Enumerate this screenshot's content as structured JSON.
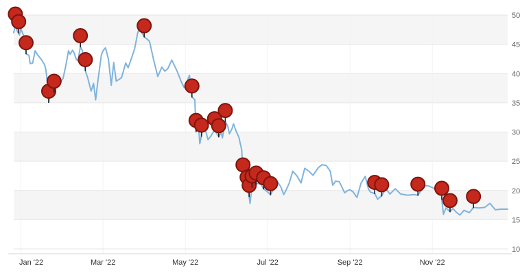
{
  "chart_data": {
    "type": "line",
    "title": "",
    "description": "Price line chart for year 2022 (values in thousands) with red event pin markers",
    "x_axis": {
      "unit": "months since Jan 1 2022",
      "range": [
        -0.17,
        11.83
      ],
      "ticks": [
        {
          "pos": 0,
          "label": "Jan '22"
        },
        {
          "pos": 2,
          "label": "Mar '22"
        },
        {
          "pos": 4,
          "label": "May '22"
        },
        {
          "pos": 6,
          "label": "Jul '22"
        },
        {
          "pos": 8,
          "label": "Sep '22"
        },
        {
          "pos": 10,
          "label": "Nov '22"
        }
      ]
    },
    "y_axis": {
      "unit": "thousands",
      "range": [
        10,
        50
      ],
      "ticks": [
        {
          "value": 10,
          "label": "10k"
        },
        {
          "value": 15,
          "label": "15k"
        },
        {
          "value": 20,
          "label": "20k"
        },
        {
          "value": 25,
          "label": "25k"
        },
        {
          "value": 30,
          "label": "30k"
        },
        {
          "value": 35,
          "label": "35k"
        },
        {
          "value": 40,
          "label": "40k"
        },
        {
          "value": 45,
          "label": "45k"
        },
        {
          "value": 50,
          "label": "50k"
        }
      ]
    },
    "grid": {
      "bands_on": true,
      "band_color": "#f5f5f5",
      "line_color": "#e6e6e6",
      "vline_color": "#f2f2f2",
      "axis_line_color": "#d4d4d4",
      "x_label_color": "#333333",
      "y_label_color": "#666666"
    },
    "series": [
      {
        "name": "price",
        "color": "#7fb3de",
        "points": [
          [
            -0.17,
            47.0
          ],
          [
            -0.13,
            48.3
          ],
          [
            -0.08,
            47.2
          ],
          [
            -0.03,
            46.6
          ],
          [
            0,
            47.7
          ],
          [
            0.07,
            46.5
          ],
          [
            0.13,
            43.4
          ],
          [
            0.2,
            43.1
          ],
          [
            0.23,
            41.7
          ],
          [
            0.29,
            41.8
          ],
          [
            0.35,
            43.9
          ],
          [
            0.42,
            43.1
          ],
          [
            0.48,
            42.6
          ],
          [
            0.52,
            42.2
          ],
          [
            0.58,
            41.5
          ],
          [
            0.61,
            40.7
          ],
          [
            0.65,
            38.4
          ],
          [
            0.68,
            35.1
          ],
          [
            0.71,
            36.4
          ],
          [
            0.74,
            36.1
          ],
          [
            0.81,
            36.8
          ],
          [
            0.87,
            37.8
          ],
          [
            0.94,
            38.1
          ],
          [
            0.97,
            38.5
          ],
          [
            1.03,
            39.2
          ],
          [
            1.1,
            41.5
          ],
          [
            1.16,
            43.9
          ],
          [
            1.2,
            43.3
          ],
          [
            1.26,
            44.0
          ],
          [
            1.3,
            43.5
          ],
          [
            1.35,
            42.4
          ],
          [
            1.39,
            42.2
          ],
          [
            1.45,
            44.6
          ],
          [
            1.5,
            43.9
          ],
          [
            1.53,
            42.7
          ],
          [
            1.57,
            40.5
          ],
          [
            1.63,
            39.2
          ],
          [
            1.71,
            37.0
          ],
          [
            1.77,
            38.3
          ],
          [
            1.82,
            35.5
          ],
          [
            1.88,
            39.0
          ],
          [
            1.96,
            43.2
          ],
          [
            2.0,
            43.9
          ],
          [
            2.06,
            44.4
          ],
          [
            2.13,
            42.5
          ],
          [
            2.2,
            38.0
          ],
          [
            2.26,
            41.9
          ],
          [
            2.32,
            38.7
          ],
          [
            2.39,
            39.0
          ],
          [
            2.45,
            39.3
          ],
          [
            2.55,
            41.8
          ],
          [
            2.61,
            41.0
          ],
          [
            2.68,
            42.4
          ],
          [
            2.77,
            44.3
          ],
          [
            2.84,
            46.9
          ],
          [
            2.87,
            47.5
          ],
          [
            2.93,
            47.1
          ],
          [
            3.0,
            46.3
          ],
          [
            3.07,
            45.9
          ],
          [
            3.13,
            45.5
          ],
          [
            3.23,
            42.3
          ],
          [
            3.33,
            39.5
          ],
          [
            3.43,
            41.1
          ],
          [
            3.5,
            40.4
          ],
          [
            3.57,
            40.8
          ],
          [
            3.67,
            42.3
          ],
          [
            3.8,
            40.4
          ],
          [
            3.9,
            38.6
          ],
          [
            3.97,
            37.6
          ],
          [
            4.03,
            38.5
          ],
          [
            4.1,
            39.7
          ],
          [
            4.16,
            36.0
          ],
          [
            4.23,
            35.5
          ],
          [
            4.26,
            30.1
          ],
          [
            4.32,
            31.0
          ],
          [
            4.35,
            28.0
          ],
          [
            4.39,
            29.3
          ],
          [
            4.45,
            31.3
          ],
          [
            4.52,
            29.5
          ],
          [
            4.55,
            28.7
          ],
          [
            4.61,
            29.2
          ],
          [
            4.68,
            30.0
          ],
          [
            4.71,
            30.4
          ],
          [
            4.77,
            29.6
          ],
          [
            4.81,
            29.2
          ],
          [
            4.87,
            29.9
          ],
          [
            4.9,
            29.0
          ],
          [
            4.97,
            31.8
          ],
          [
            5.03,
            31.0
          ],
          [
            5.07,
            29.7
          ],
          [
            5.13,
            30.5
          ],
          [
            5.17,
            31.4
          ],
          [
            5.23,
            30.2
          ],
          [
            5.3,
            29.1
          ],
          [
            5.37,
            26.9
          ],
          [
            5.4,
            22.5
          ],
          [
            5.44,
            22.1
          ],
          [
            5.5,
            20.4
          ],
          [
            5.55,
            19.0
          ],
          [
            5.57,
            17.8
          ],
          [
            5.62,
            20.6
          ],
          [
            5.68,
            21.0
          ],
          [
            5.72,
            21.1
          ],
          [
            5.77,
            21.2
          ],
          [
            5.84,
            21.0
          ],
          [
            5.9,
            20.3
          ],
          [
            5.97,
            19.9
          ],
          [
            6.07,
            19.3
          ],
          [
            6.13,
            20.1
          ],
          [
            6.23,
            21.6
          ],
          [
            6.32,
            20.6
          ],
          [
            6.39,
            19.3
          ],
          [
            6.45,
            20.1
          ],
          [
            6.52,
            21.2
          ],
          [
            6.61,
            23.3
          ],
          [
            6.71,
            22.5
          ],
          [
            6.81,
            21.3
          ],
          [
            6.9,
            23.8
          ],
          [
            7.0,
            23.3
          ],
          [
            7.1,
            22.6
          ],
          [
            7.23,
            23.9
          ],
          [
            7.32,
            24.4
          ],
          [
            7.42,
            24.3
          ],
          [
            7.52,
            23.3
          ],
          [
            7.58,
            20.9
          ],
          [
            7.65,
            21.6
          ],
          [
            7.74,
            21.5
          ],
          [
            7.87,
            19.6
          ],
          [
            7.94,
            20.0
          ],
          [
            8.0,
            20.1
          ],
          [
            8.07,
            19.8
          ],
          [
            8.17,
            18.8
          ],
          [
            8.27,
            21.3
          ],
          [
            8.37,
            22.4
          ],
          [
            8.45,
            20.2
          ],
          [
            8.5,
            19.7
          ],
          [
            8.6,
            19.5
          ],
          [
            8.67,
            18.5
          ],
          [
            8.77,
            19.1
          ],
          [
            8.87,
            20.3
          ],
          [
            8.97,
            19.4
          ],
          [
            9.1,
            20.3
          ],
          [
            9.23,
            19.4
          ],
          [
            9.4,
            19.2
          ],
          [
            9.55,
            19.3
          ],
          [
            9.65,
            19.2
          ],
          [
            9.81,
            20.8
          ],
          [
            9.9,
            20.8
          ],
          [
            10.0,
            20.5
          ],
          [
            10.07,
            20.2
          ],
          [
            10.13,
            21.3
          ],
          [
            10.2,
            20.6
          ],
          [
            10.23,
            18.5
          ],
          [
            10.27,
            15.9
          ],
          [
            10.33,
            17.0
          ],
          [
            10.43,
            16.4
          ],
          [
            10.5,
            16.9
          ],
          [
            10.58,
            16.3
          ],
          [
            10.67,
            15.8
          ],
          [
            10.77,
            16.6
          ],
          [
            10.9,
            16.2
          ],
          [
            11.0,
            17.1
          ],
          [
            11.13,
            17.0
          ],
          [
            11.27,
            17.1
          ],
          [
            11.4,
            17.8
          ],
          [
            11.53,
            16.7
          ],
          [
            11.67,
            16.8
          ],
          [
            11.83,
            16.8
          ]
        ]
      }
    ],
    "markers": {
      "name": "event-pin",
      "fill": "#c5281c",
      "stroke": "#7e150c",
      "stem_color": "#1c2331",
      "points": [
        [
          -0.13,
          48.3
        ],
        [
          -0.05,
          47.0
        ],
        [
          0.13,
          43.4
        ],
        [
          0.68,
          35.1
        ],
        [
          0.81,
          36.8
        ],
        [
          1.45,
          44.6
        ],
        [
          1.57,
          40.5
        ],
        [
          3.0,
          46.3
        ],
        [
          4.16,
          36.0
        ],
        [
          4.26,
          30.1
        ],
        [
          4.39,
          29.3
        ],
        [
          4.71,
          30.4
        ],
        [
          4.81,
          29.2
        ],
        [
          4.97,
          31.8
        ],
        [
          5.4,
          22.5
        ],
        [
          5.5,
          20.4
        ],
        [
          5.55,
          19.0
        ],
        [
          5.62,
          20.6
        ],
        [
          5.72,
          21.1
        ],
        [
          5.9,
          20.3
        ],
        [
          6.07,
          19.3
        ],
        [
          8.6,
          19.5
        ],
        [
          8.77,
          19.1
        ],
        [
          9.65,
          19.2
        ],
        [
          10.23,
          18.5
        ],
        [
          10.43,
          16.4
        ],
        [
          11.0,
          17.1
        ]
      ]
    }
  }
}
